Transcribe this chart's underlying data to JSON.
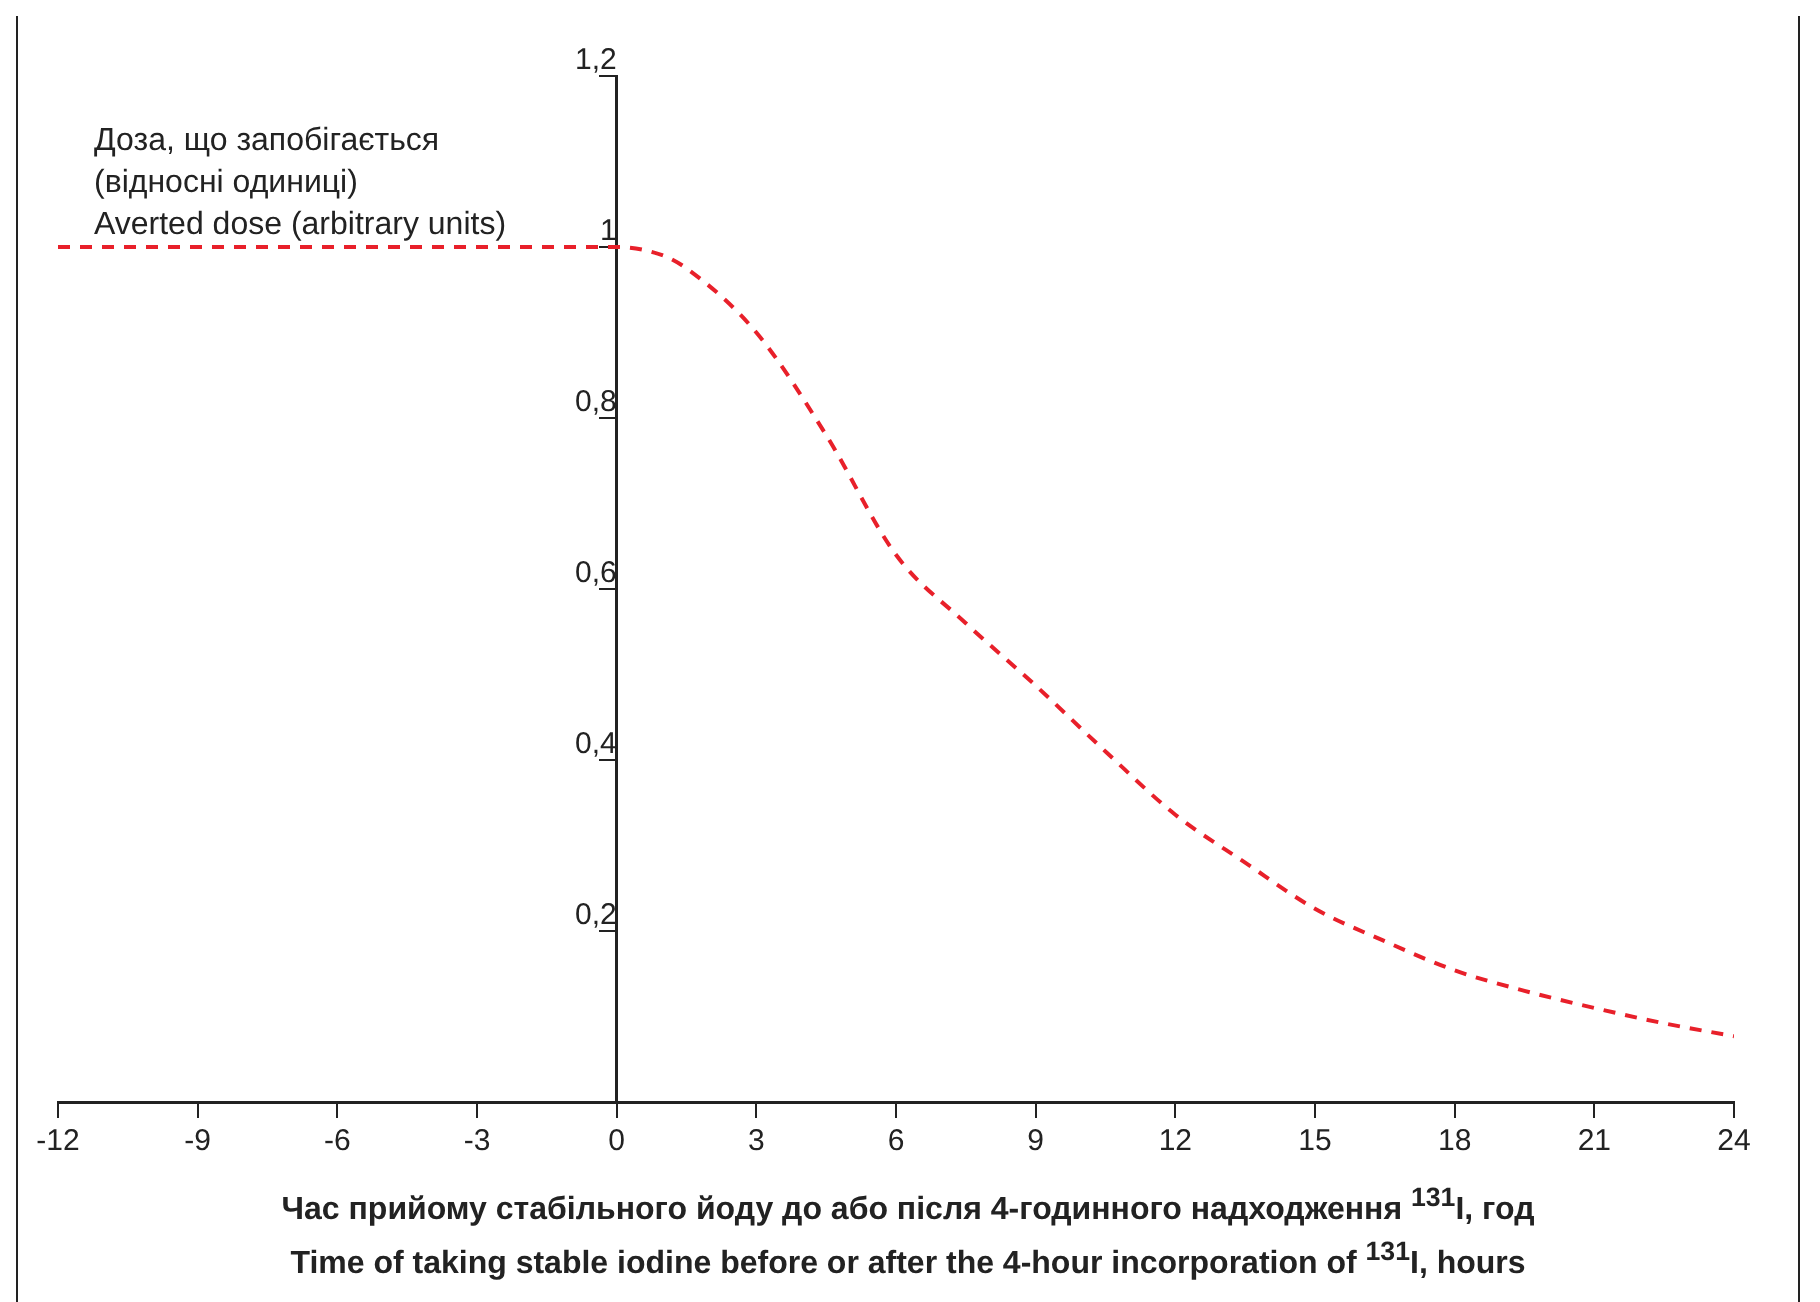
{
  "chart_data": {
    "type": "line",
    "ylabel": "Доза, що запобігається\n(відносні одиниці)\nAverted dose (arbitrary units)",
    "xlabel": "Час прийому стабільного йоду до або після 4-годинного надходження $^{131}$I, год\nTime of taking stable iodine before or after the 4-hour incorporation of $^{131}$I, hours",
    "x": [
      -12,
      -9,
      -6,
      -3,
      0,
      1,
      1.5,
      3,
      4.5,
      6,
      7.5,
      9,
      10.5,
      12,
      13.5,
      15,
      16.5,
      18,
      19.5,
      21,
      22.5,
      24
    ],
    "series": [
      {
        "color": "#e8202a",
        "values": [
          1,
          1,
          1,
          1,
          1,
          0.99,
          0.975,
          0.9,
          0.78,
          0.64,
          0.56,
          0.487,
          0.41,
          0.336,
          0.28,
          0.226,
          0.188,
          0.154,
          0.13,
          0.11,
          0.092,
          0.077
        ]
      }
    ],
    "xlim": [
      -12,
      24
    ],
    "xticks": [
      -12,
      -9,
      -6,
      -3,
      0,
      3,
      6,
      9,
      12,
      15,
      18,
      21,
      24
    ],
    "ylim": [
      0,
      1.2
    ],
    "yticks": [
      {
        "value": 0.2,
        "label": "0,2"
      },
      {
        "value": 0.4,
        "label": "0,4"
      },
      {
        "value": 0.6,
        "label": "0,6"
      },
      {
        "value": 0.8,
        "label": "0,8"
      },
      1,
      {
        "value": 1.2,
        "label": "1,2"
      }
    ],
    "grid": false,
    "legend": false,
    "marker": "none",
    "line_style": "dashed"
  }
}
